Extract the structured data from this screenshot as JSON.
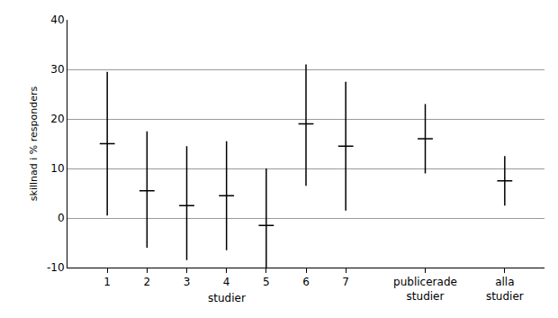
{
  "chart_data": {
    "type": "errorbar",
    "categories": [
      "1",
      "2",
      "3",
      "4",
      "5",
      "6",
      "7",
      null,
      "publicerade\nstudier",
      null,
      "alla\nstudier"
    ],
    "values": [
      15,
      5.5,
      2.5,
      4.5,
      -1.5,
      19,
      14.5,
      null,
      16,
      null,
      7.5
    ],
    "lower": [
      0.5,
      -6,
      -8.5,
      -6.5,
      -10,
      6.5,
      1.5,
      null,
      9,
      null,
      2.5
    ],
    "upper": [
      29.5,
      17.5,
      14.5,
      15.5,
      10,
      31,
      27.5,
      null,
      23,
      null,
      12.5
    ],
    "ylabel": "skillnad i % responders",
    "annotations": [
      {
        "text": "studier",
        "category": "4"
      }
    ],
    "ylim": [
      -10,
      40
    ],
    "yticks": [
      -10,
      0,
      10,
      20,
      30,
      40
    ],
    "grid": true,
    "color": "#000000",
    "marker": "line-ew"
  }
}
